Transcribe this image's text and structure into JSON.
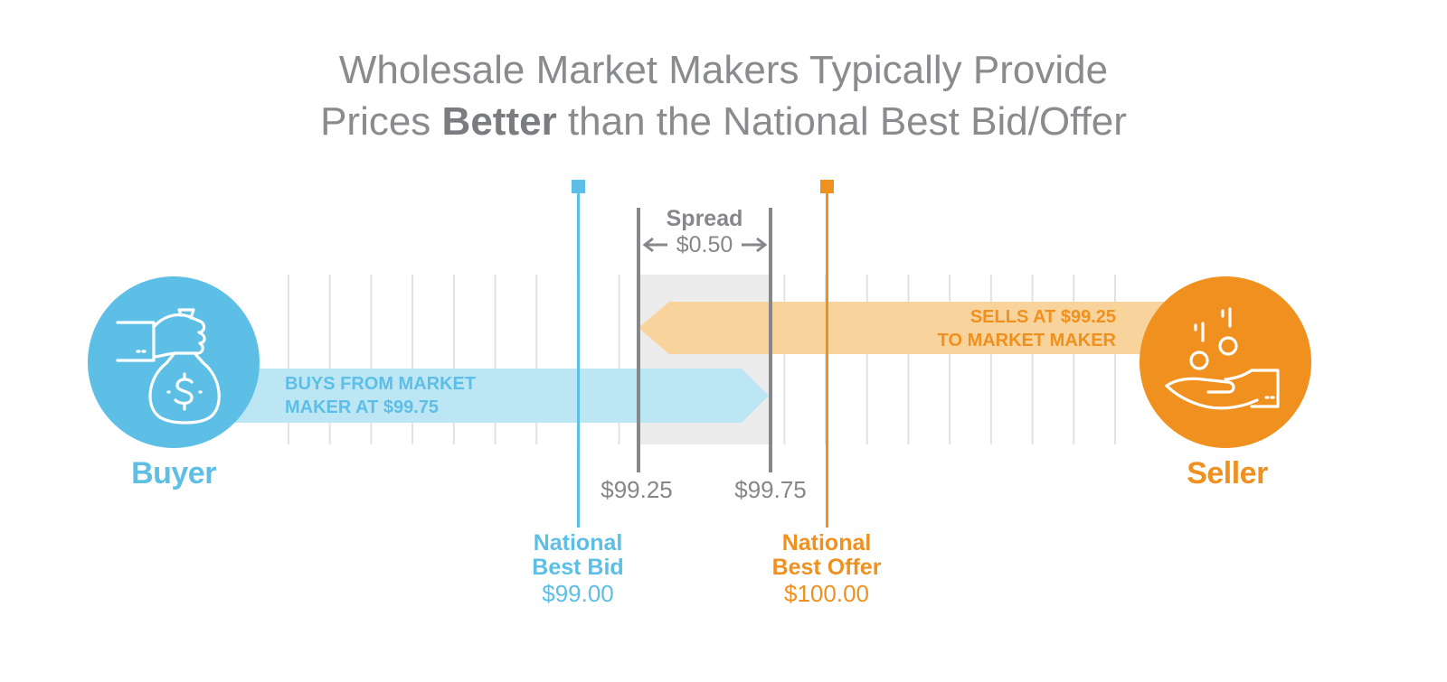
{
  "title": {
    "line1": "Wholesale Market Makers Typically Provide",
    "line2_pre": "Prices ",
    "line2_bold": "Better",
    "line2_post": " than the National Best Bid/Offer"
  },
  "buyer": {
    "label": "Buyer",
    "icon": "money-bag-hand-icon",
    "arrow_text_line1": "BUYS FROM MARKET",
    "arrow_text_line2": "MAKER AT $99.75"
  },
  "seller": {
    "label": "Seller",
    "icon": "coins-hand-icon",
    "arrow_text_line1": "SELLS AT $99.25",
    "arrow_text_line2": "TO MARKET MAKER"
  },
  "spread": {
    "label": "Spread",
    "value": "$0.50",
    "low_price": "$99.25",
    "high_price": "$99.75"
  },
  "national_best_bid": {
    "line1": "National",
    "line2": "Best Bid",
    "price": "$99.00"
  },
  "national_best_offer": {
    "line1": "National",
    "line2": "Best Offer",
    "price": "$100.00"
  },
  "colors": {
    "blue": "#5dbfe6",
    "blue_light": "#bde6f5",
    "orange": "#f0911f",
    "orange_light": "#f9d39c",
    "gray": "#86878b",
    "spread_fill": "#ececec",
    "tick": "#e2e2e2"
  }
}
